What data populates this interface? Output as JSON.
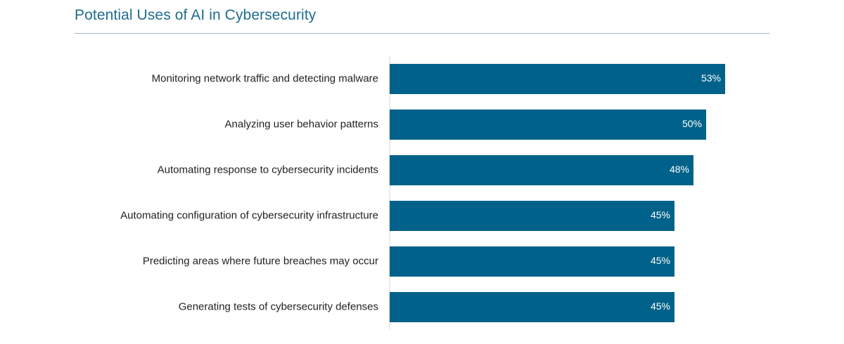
{
  "chart_data": {
    "type": "bar",
    "orientation": "horizontal",
    "title": "Potential Uses of AI in Cybersecurity",
    "categories": [
      "Monitoring network traffic and detecting malware",
      "Analyzing user behavior patterns",
      "Automating response to cybersecurity incidents",
      "Automating configuration of cybersecurity infrastructure",
      "Predicting areas where future breaches may occur",
      "Generating tests of cybersecurity defenses"
    ],
    "values": [
      53,
      50,
      48,
      45,
      45,
      45
    ],
    "value_labels": [
      "53%",
      "50%",
      "48%",
      "45%",
      "45%",
      "45%"
    ],
    "xlim": [
      0,
      100
    ],
    "grid": false,
    "legend": "none",
    "colors": {
      "bar": "#00628a",
      "title": "#1f6c8e",
      "rule": "#9fbccb",
      "axis": "#d9d9d9",
      "category_text": "#222222",
      "value_text": "#ffffff"
    }
  }
}
